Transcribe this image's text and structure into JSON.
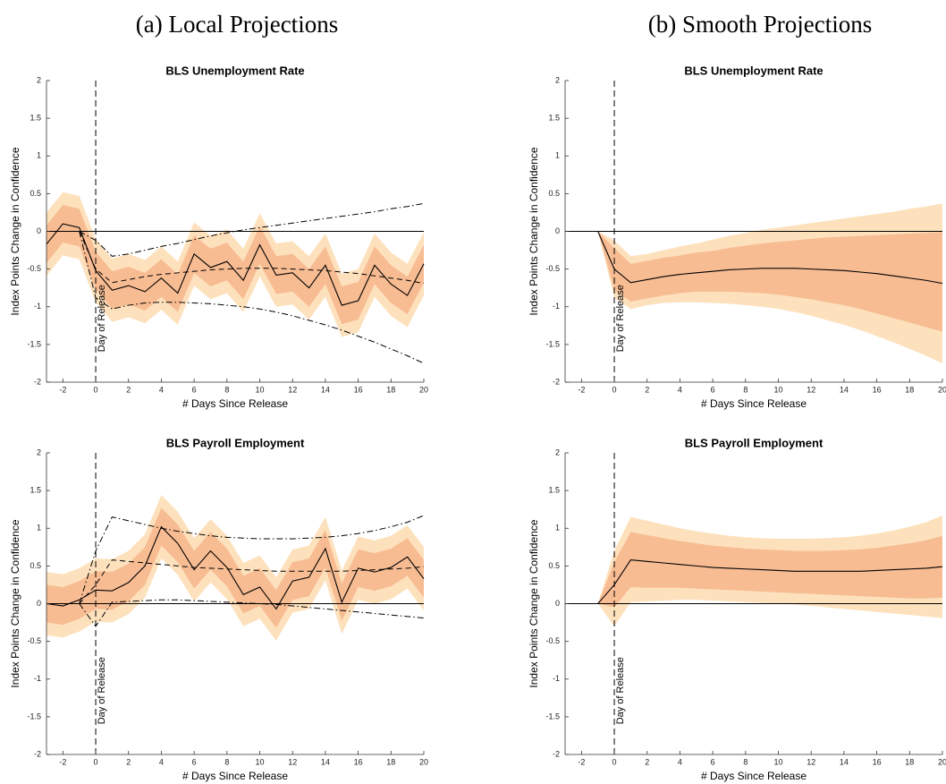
{
  "panels": [
    "(a) Local Projections",
    "(b) Smooth Projections"
  ],
  "chart_data": [
    {
      "type": "line",
      "title": "BLS Unemployment Rate",
      "xlabel": "# Days Since Release",
      "ylabel": "Index Points Change in Confidence",
      "annotation": "Day of Release",
      "x": [
        -3,
        -2,
        -1,
        0,
        1,
        2,
        3,
        4,
        5,
        6,
        7,
        8,
        9,
        10,
        11,
        12,
        13,
        14,
        15,
        16,
        17,
        18,
        19,
        20
      ],
      "xlim": [
        -3,
        20
      ],
      "xticks": [
        -2,
        0,
        2,
        4,
        6,
        8,
        10,
        12,
        14,
        16,
        18,
        20
      ],
      "ylim": [
        -2,
        2
      ],
      "yticks": [
        -2,
        -1.5,
        -1,
        -0.5,
        0,
        0.5,
        1,
        1.5,
        2
      ],
      "hline": 0,
      "vline": 0,
      "color": "#000000",
      "values": [
        -0.17,
        0.1,
        0.05,
        -0.52,
        -0.78,
        -0.72,
        -0.8,
        -0.62,
        -0.82,
        -0.3,
        -0.48,
        -0.4,
        -0.65,
        -0.18,
        -0.58,
        -0.55,
        -0.75,
        -0.45,
        -0.98,
        -0.92,
        -0.45,
        -0.7,
        -0.85,
        -0.43
      ],
      "bands": [
        {
          "color": "#fde1bd",
          "lower": [
            -0.59,
            -0.32,
            -0.37,
            -0.94,
            -1.2,
            -1.14,
            -1.22,
            -1.04,
            -1.24,
            -0.72,
            -0.9,
            -0.82,
            -1.07,
            -0.6,
            -1.0,
            -0.97,
            -1.17,
            -0.87,
            -1.4,
            -1.34,
            -0.87,
            -1.12,
            -1.27,
            -0.85
          ],
          "upper": [
            0.25,
            0.52,
            0.47,
            -0.1,
            -0.36,
            -0.3,
            -0.38,
            -0.2,
            -0.4,
            0.12,
            -0.06,
            0.02,
            -0.23,
            0.24,
            -0.16,
            -0.13,
            -0.33,
            -0.03,
            -0.56,
            -0.5,
            -0.03,
            -0.28,
            -0.43,
            -0.01
          ]
        },
        {
          "color": "#f8bc93",
          "lower": [
            -0.42,
            -0.15,
            -0.2,
            -0.77,
            -1.03,
            -0.97,
            -1.05,
            -0.87,
            -1.07,
            -0.55,
            -0.73,
            -0.65,
            -0.9,
            -0.43,
            -0.83,
            -0.8,
            -1.0,
            -0.7,
            -1.23,
            -1.17,
            -0.7,
            -0.95,
            -1.1,
            -0.68
          ],
          "upper": [
            0.08,
            0.35,
            0.3,
            -0.27,
            -0.53,
            -0.47,
            -0.55,
            -0.37,
            -0.57,
            -0.05,
            -0.23,
            -0.15,
            -0.4,
            0.07,
            -0.33,
            -0.3,
            -0.5,
            -0.2,
            -0.73,
            -0.67,
            -0.2,
            -0.45,
            -0.6,
            -0.18
          ]
        }
      ],
      "overlays": [
        {
          "dash": "dashed",
          "color": "#000000",
          "values": [
            null,
            null,
            0,
            -0.5,
            -0.68,
            -0.64,
            -0.6,
            -0.57,
            -0.55,
            -0.53,
            -0.51,
            -0.5,
            -0.49,
            -0.49,
            -0.49,
            -0.5,
            -0.51,
            -0.52,
            -0.54,
            -0.56,
            -0.59,
            -0.62,
            -0.65,
            -0.69
          ]
        },
        {
          "dash": "dashdot",
          "color": "#000000",
          "values": [
            null,
            null,
            0,
            -0.12,
            -0.33,
            -0.3,
            -0.25,
            -0.2,
            -0.16,
            -0.11,
            -0.06,
            -0.02,
            0.02,
            0.05,
            0.08,
            0.11,
            0.14,
            0.17,
            0.2,
            0.23,
            0.26,
            0.3,
            0.33,
            0.37
          ]
        },
        {
          "dash": "dashdot",
          "color": "#000000",
          "values": [
            null,
            null,
            0,
            -0.88,
            -1.03,
            -0.98,
            -0.95,
            -0.94,
            -0.94,
            -0.95,
            -0.96,
            -0.98,
            -1.0,
            -1.03,
            -1.07,
            -1.12,
            -1.18,
            -1.24,
            -1.31,
            -1.39,
            -1.47,
            -1.56,
            -1.65,
            -1.75
          ]
        }
      ]
    },
    {
      "type": "line",
      "title": "BLS Unemployment Rate",
      "xlabel": "# Days Since Release",
      "ylabel": "Index Points Change in Confidence",
      "annotation": "Day of Release",
      "x": [
        -3,
        -2,
        -1,
        0,
        1,
        2,
        3,
        4,
        5,
        6,
        7,
        8,
        9,
        10,
        11,
        12,
        13,
        14,
        15,
        16,
        17,
        18,
        19,
        20
      ],
      "xlim": [
        -3,
        20
      ],
      "xticks": [
        -2,
        0,
        2,
        4,
        6,
        8,
        10,
        12,
        14,
        16,
        18,
        20
      ],
      "ylim": [
        -2,
        2
      ],
      "yticks": [
        -2,
        -1.5,
        -1,
        -0.5,
        0,
        0.5,
        1,
        1.5,
        2
      ],
      "hline": 0,
      "vline": 0,
      "color": "#000000",
      "values": [
        0,
        0,
        0,
        -0.5,
        -0.68,
        -0.64,
        -0.6,
        -0.57,
        -0.55,
        -0.53,
        -0.51,
        -0.5,
        -0.49,
        -0.49,
        -0.49,
        -0.5,
        -0.51,
        -0.52,
        -0.54,
        -0.56,
        -0.59,
        -0.62,
        -0.65,
        -0.69
      ],
      "bands": [
        {
          "color": "#fde1bd",
          "lower": [
            0,
            0,
            0,
            -0.88,
            -1.03,
            -0.98,
            -0.95,
            -0.94,
            -0.94,
            -0.95,
            -0.96,
            -0.98,
            -1.0,
            -1.03,
            -1.07,
            -1.12,
            -1.18,
            -1.24,
            -1.31,
            -1.39,
            -1.47,
            -1.56,
            -1.65,
            -1.75
          ],
          "upper": [
            0,
            0,
            0,
            -0.12,
            -0.33,
            -0.3,
            -0.25,
            -0.2,
            -0.16,
            -0.11,
            -0.06,
            -0.02,
            0.02,
            0.05,
            0.08,
            0.11,
            0.14,
            0.17,
            0.2,
            0.23,
            0.26,
            0.3,
            0.33,
            0.37
          ]
        },
        {
          "color": "#f8bc93",
          "lower": [
            0,
            0,
            0,
            -0.78,
            -0.93,
            -0.89,
            -0.85,
            -0.82,
            -0.8,
            -0.8,
            -0.8,
            -0.81,
            -0.82,
            -0.84,
            -0.87,
            -0.9,
            -0.94,
            -0.98,
            -1.03,
            -1.09,
            -1.15,
            -1.21,
            -1.27,
            -1.33
          ],
          "upper": [
            0,
            0,
            0,
            -0.22,
            -0.43,
            -0.39,
            -0.35,
            -0.32,
            -0.28,
            -0.26,
            -0.22,
            -0.19,
            -0.16,
            -0.14,
            -0.12,
            -0.1,
            -0.08,
            -0.07,
            -0.06,
            -0.05,
            -0.04,
            -0.03,
            -0.02,
            -0.01
          ]
        }
      ],
      "overlays": []
    },
    {
      "type": "line",
      "title": "BLS Payroll Employment",
      "xlabel": "# Days Since Release",
      "ylabel": "Index Points Change in Confidence",
      "annotation": "Day of Release",
      "x": [
        -3,
        -2,
        -1,
        0,
        1,
        2,
        3,
        4,
        5,
        6,
        7,
        8,
        9,
        10,
        11,
        12,
        13,
        14,
        15,
        16,
        17,
        18,
        19,
        20
      ],
      "xlim": [
        -3,
        20
      ],
      "xticks": [
        -2,
        0,
        2,
        4,
        6,
        8,
        10,
        12,
        14,
        16,
        18,
        20
      ],
      "ylim": [
        -2,
        2
      ],
      "yticks": [
        -2,
        -1.5,
        -1,
        -0.5,
        0,
        0.5,
        1,
        1.5,
        2
      ],
      "hline": 0,
      "vline": 0,
      "color": "#000000",
      "values": [
        0,
        -0.03,
        0.05,
        0.18,
        0.17,
        0.28,
        0.5,
        1.02,
        0.8,
        0.45,
        0.7,
        0.48,
        0.12,
        0.22,
        -0.07,
        0.3,
        0.35,
        0.73,
        0.02,
        0.47,
        0.42,
        0.48,
        0.62,
        0.33
      ],
      "bands": [
        {
          "color": "#fde1bd",
          "lower": [
            -0.42,
            -0.45,
            -0.37,
            -0.24,
            -0.25,
            -0.14,
            0.08,
            0.6,
            0.38,
            0.03,
            0.28,
            0.06,
            -0.3,
            -0.2,
            -0.49,
            -0.12,
            -0.07,
            0.31,
            -0.4,
            0.05,
            0,
            0.06,
            0.2,
            -0.09
          ],
          "upper": [
            0.42,
            0.39,
            0.47,
            0.6,
            0.59,
            0.7,
            0.92,
            1.44,
            1.22,
            0.87,
            1.12,
            0.9,
            0.54,
            0.64,
            0.35,
            0.72,
            0.77,
            1.15,
            0.44,
            0.89,
            0.84,
            0.9,
            1.04,
            0.75
          ]
        },
        {
          "color": "#f8bc93",
          "lower": [
            -0.25,
            -0.28,
            -0.2,
            -0.07,
            -0.08,
            0.03,
            0.25,
            0.77,
            0.55,
            0.2,
            0.45,
            0.23,
            -0.13,
            -0.03,
            -0.32,
            0.05,
            0.1,
            0.48,
            -0.23,
            0.22,
            0.17,
            0.23,
            0.37,
            0.08
          ],
          "upper": [
            0.25,
            0.22,
            0.3,
            0.43,
            0.42,
            0.53,
            0.75,
            1.27,
            1.05,
            0.7,
            0.95,
            0.73,
            0.37,
            0.47,
            0.18,
            0.55,
            0.6,
            0.98,
            0.27,
            0.72,
            0.67,
            0.73,
            0.87,
            0.58
          ]
        }
      ],
      "overlays": [
        {
          "dash": "dashed",
          "color": "#000000",
          "values": [
            null,
            null,
            0,
            0.25,
            0.58,
            0.56,
            0.54,
            0.52,
            0.5,
            0.48,
            0.47,
            0.46,
            0.45,
            0.44,
            0.43,
            0.43,
            0.43,
            0.43,
            0.43,
            0.44,
            0.45,
            0.46,
            0.47,
            0.49
          ]
        },
        {
          "dash": "dashdot",
          "color": "#000000",
          "values": [
            null,
            null,
            0,
            0.7,
            1.15,
            1.1,
            1.05,
            1.0,
            0.96,
            0.93,
            0.9,
            0.88,
            0.87,
            0.86,
            0.86,
            0.86,
            0.87,
            0.88,
            0.9,
            0.93,
            0.97,
            1.02,
            1.08,
            1.17
          ]
        },
        {
          "dash": "dashdot",
          "color": "#000000",
          "values": [
            null,
            null,
            0,
            -0.3,
            0.02,
            0.03,
            0.04,
            0.05,
            0.05,
            0.04,
            0.03,
            0.02,
            0.01,
            0,
            -0.01,
            -0.03,
            -0.05,
            -0.07,
            -0.09,
            -0.11,
            -0.13,
            -0.15,
            -0.17,
            -0.19
          ]
        }
      ]
    },
    {
      "type": "line",
      "title": "BLS Payroll Employment",
      "xlabel": "# Days Since Release",
      "ylabel": "Index Points Change in Confidence",
      "annotation": "Day of Release",
      "x": [
        -3,
        -2,
        -1,
        0,
        1,
        2,
        3,
        4,
        5,
        6,
        7,
        8,
        9,
        10,
        11,
        12,
        13,
        14,
        15,
        16,
        17,
        18,
        19,
        20
      ],
      "xlim": [
        -3,
        20
      ],
      "xticks": [
        -2,
        0,
        2,
        4,
        6,
        8,
        10,
        12,
        14,
        16,
        18,
        20
      ],
      "ylim": [
        -2,
        2
      ],
      "yticks": [
        -2,
        -1.5,
        -1,
        -0.5,
        0,
        0.5,
        1,
        1.5,
        2
      ],
      "hline": 0,
      "vline": 0,
      "color": "#000000",
      "values": [
        0,
        0,
        0,
        0.25,
        0.58,
        0.56,
        0.54,
        0.52,
        0.5,
        0.48,
        0.47,
        0.46,
        0.45,
        0.44,
        0.43,
        0.43,
        0.43,
        0.43,
        0.43,
        0.44,
        0.45,
        0.46,
        0.47,
        0.49
      ],
      "bands": [
        {
          "color": "#fde1bd",
          "lower": [
            0,
            0,
            0,
            -0.3,
            0.02,
            0.03,
            0.04,
            0.05,
            0.05,
            0.04,
            0.03,
            0.02,
            0.01,
            0,
            -0.01,
            -0.03,
            -0.05,
            -0.07,
            -0.09,
            -0.11,
            -0.13,
            -0.15,
            -0.17,
            -0.19
          ],
          "upper": [
            0,
            0,
            0,
            0.7,
            1.15,
            1.1,
            1.05,
            1.0,
            0.96,
            0.93,
            0.9,
            0.88,
            0.87,
            0.86,
            0.86,
            0.86,
            0.87,
            0.88,
            0.9,
            0.93,
            0.97,
            1.02,
            1.08,
            1.17
          ]
        },
        {
          "color": "#f8bc93",
          "lower": [
            0,
            0,
            0,
            -0.05,
            0.22,
            0.21,
            0.21,
            0.21,
            0.2,
            0.19,
            0.18,
            0.17,
            0.16,
            0.15,
            0.14,
            0.13,
            0.12,
            0.11,
            0.1,
            0.09,
            0.08,
            0.07,
            0.07,
            0.08
          ],
          "upper": [
            0,
            0,
            0,
            0.55,
            0.95,
            0.91,
            0.87,
            0.83,
            0.8,
            0.77,
            0.75,
            0.73,
            0.72,
            0.71,
            0.7,
            0.7,
            0.7,
            0.71,
            0.72,
            0.74,
            0.77,
            0.8,
            0.84,
            0.9
          ]
        }
      ],
      "overlays": []
    }
  ]
}
